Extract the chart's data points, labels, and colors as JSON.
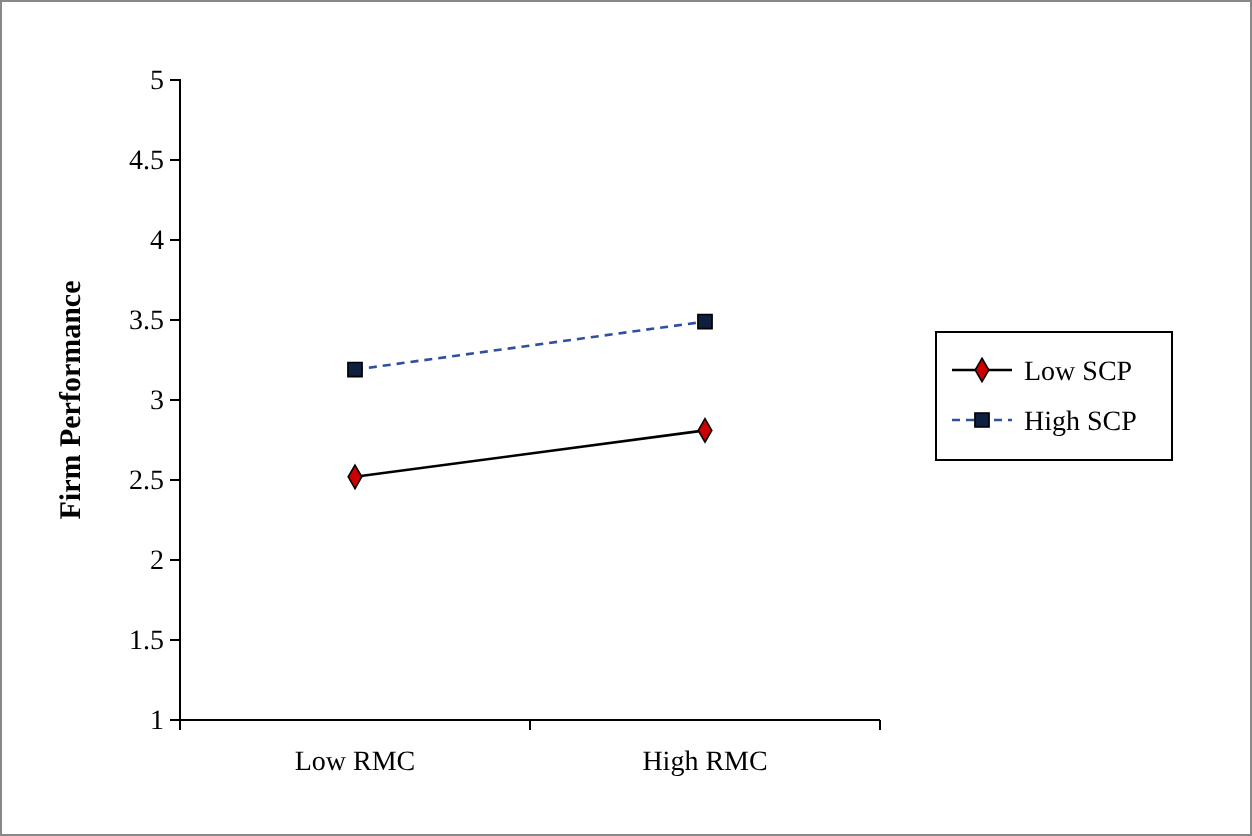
{
  "chart_data": {
    "type": "line",
    "ylabel": "Firm Performance",
    "categories": [
      "Low RMC",
      "High RMC"
    ],
    "series": [
      {
        "name": "Low SCP",
        "color": "#000000",
        "colors": [
          "#cc0000",
          "#cc0000"
        ],
        "marker": "diamond",
        "line_style": "solid",
        "values": [
          2.52,
          2.81
        ]
      },
      {
        "name": "High SCP",
        "color": "#2f4f9f",
        "colors": [
          "#0f1f3f",
          "#0f1f3f"
        ],
        "marker": "square",
        "line_style": "dashed",
        "values": [
          3.19,
          3.49
        ]
      }
    ],
    "ylim": [
      1,
      5
    ],
    "yticks": [
      1,
      1.5,
      2,
      2.5,
      3,
      3.5,
      4,
      4.5,
      5
    ],
    "grid": false,
    "legend": "right"
  }
}
